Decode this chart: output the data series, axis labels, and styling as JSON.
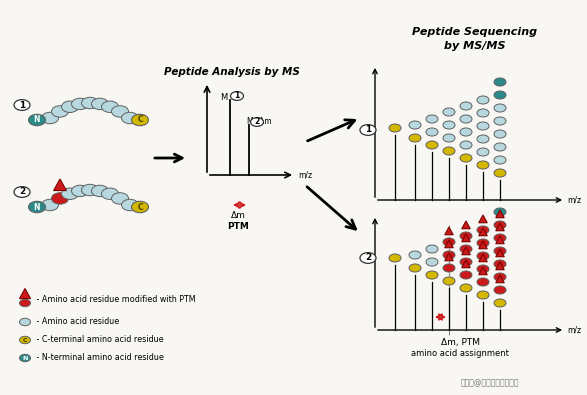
{
  "title_ms": "Peptide Analysis by MS",
  "title_msms": "Peptide Sequencing\nby MS/MS",
  "bg_color": "#f8f7f3",
  "legend_items": [
    " - Amino acid residue modified with PTM",
    " - Amino acid residue",
    " - C-terminal amino acid residue",
    " - N-terminal amino acid residue"
  ],
  "watermark": "搜狐号@百济派克生物科技",
  "circle_light_blue": "#b8d8e0",
  "circle_yellow": "#d4b800",
  "circle_teal": "#2a8a8a",
  "circle_red": "#cc1a1a",
  "arrow_red": "#cc1a1a"
}
